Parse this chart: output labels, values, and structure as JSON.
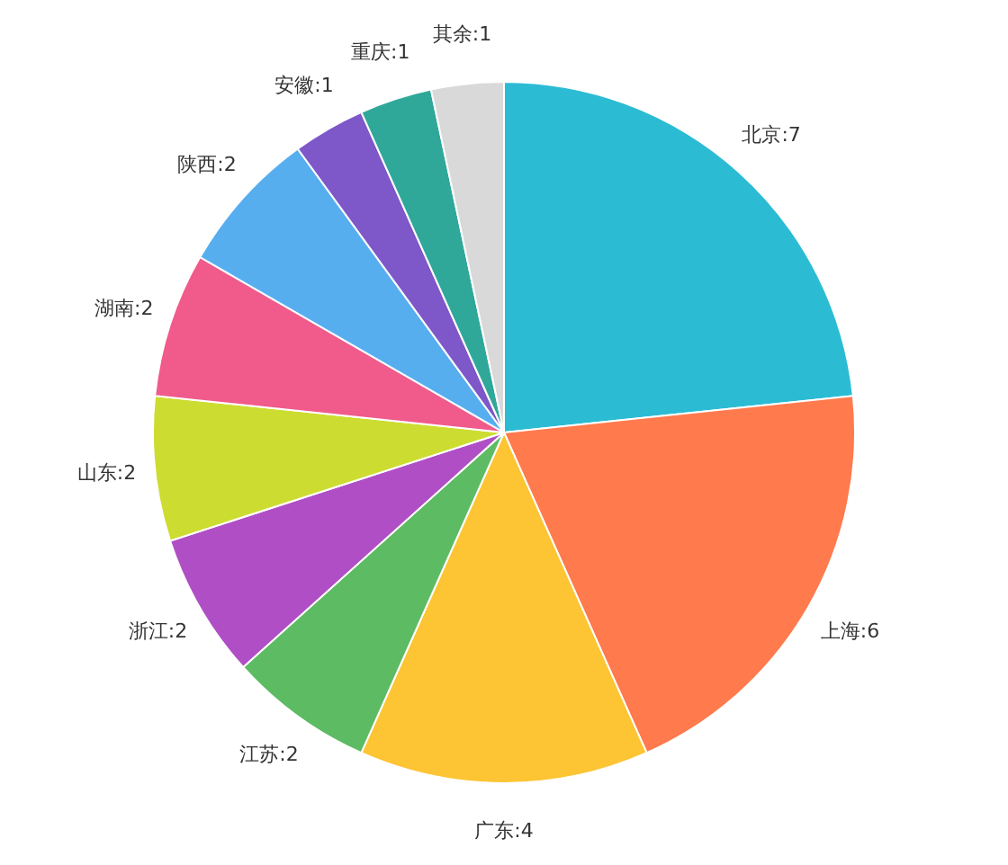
{
  "chart_data": {
    "type": "pie",
    "legend": false,
    "categories": [
      "北京:7",
      "上海:6",
      "广东:4",
      "江苏:2",
      "浙江:2",
      "山东:2",
      "湖南:2",
      "陕西:2",
      "安徽:1",
      "重庆:1",
      "其余:1"
    ],
    "values": [
      7,
      6,
      4,
      2,
      2,
      2,
      2,
      2,
      1,
      1,
      1
    ],
    "colors": [
      "#2bbcd4",
      "#ff7a4d",
      "#fdc433",
      "#5dbb63",
      "#b04fc5",
      "#cddc30",
      "#f05b8c",
      "#57aeef",
      "#7e57c9",
      "#2fa89a",
      "#d9d9d9"
    ]
  }
}
